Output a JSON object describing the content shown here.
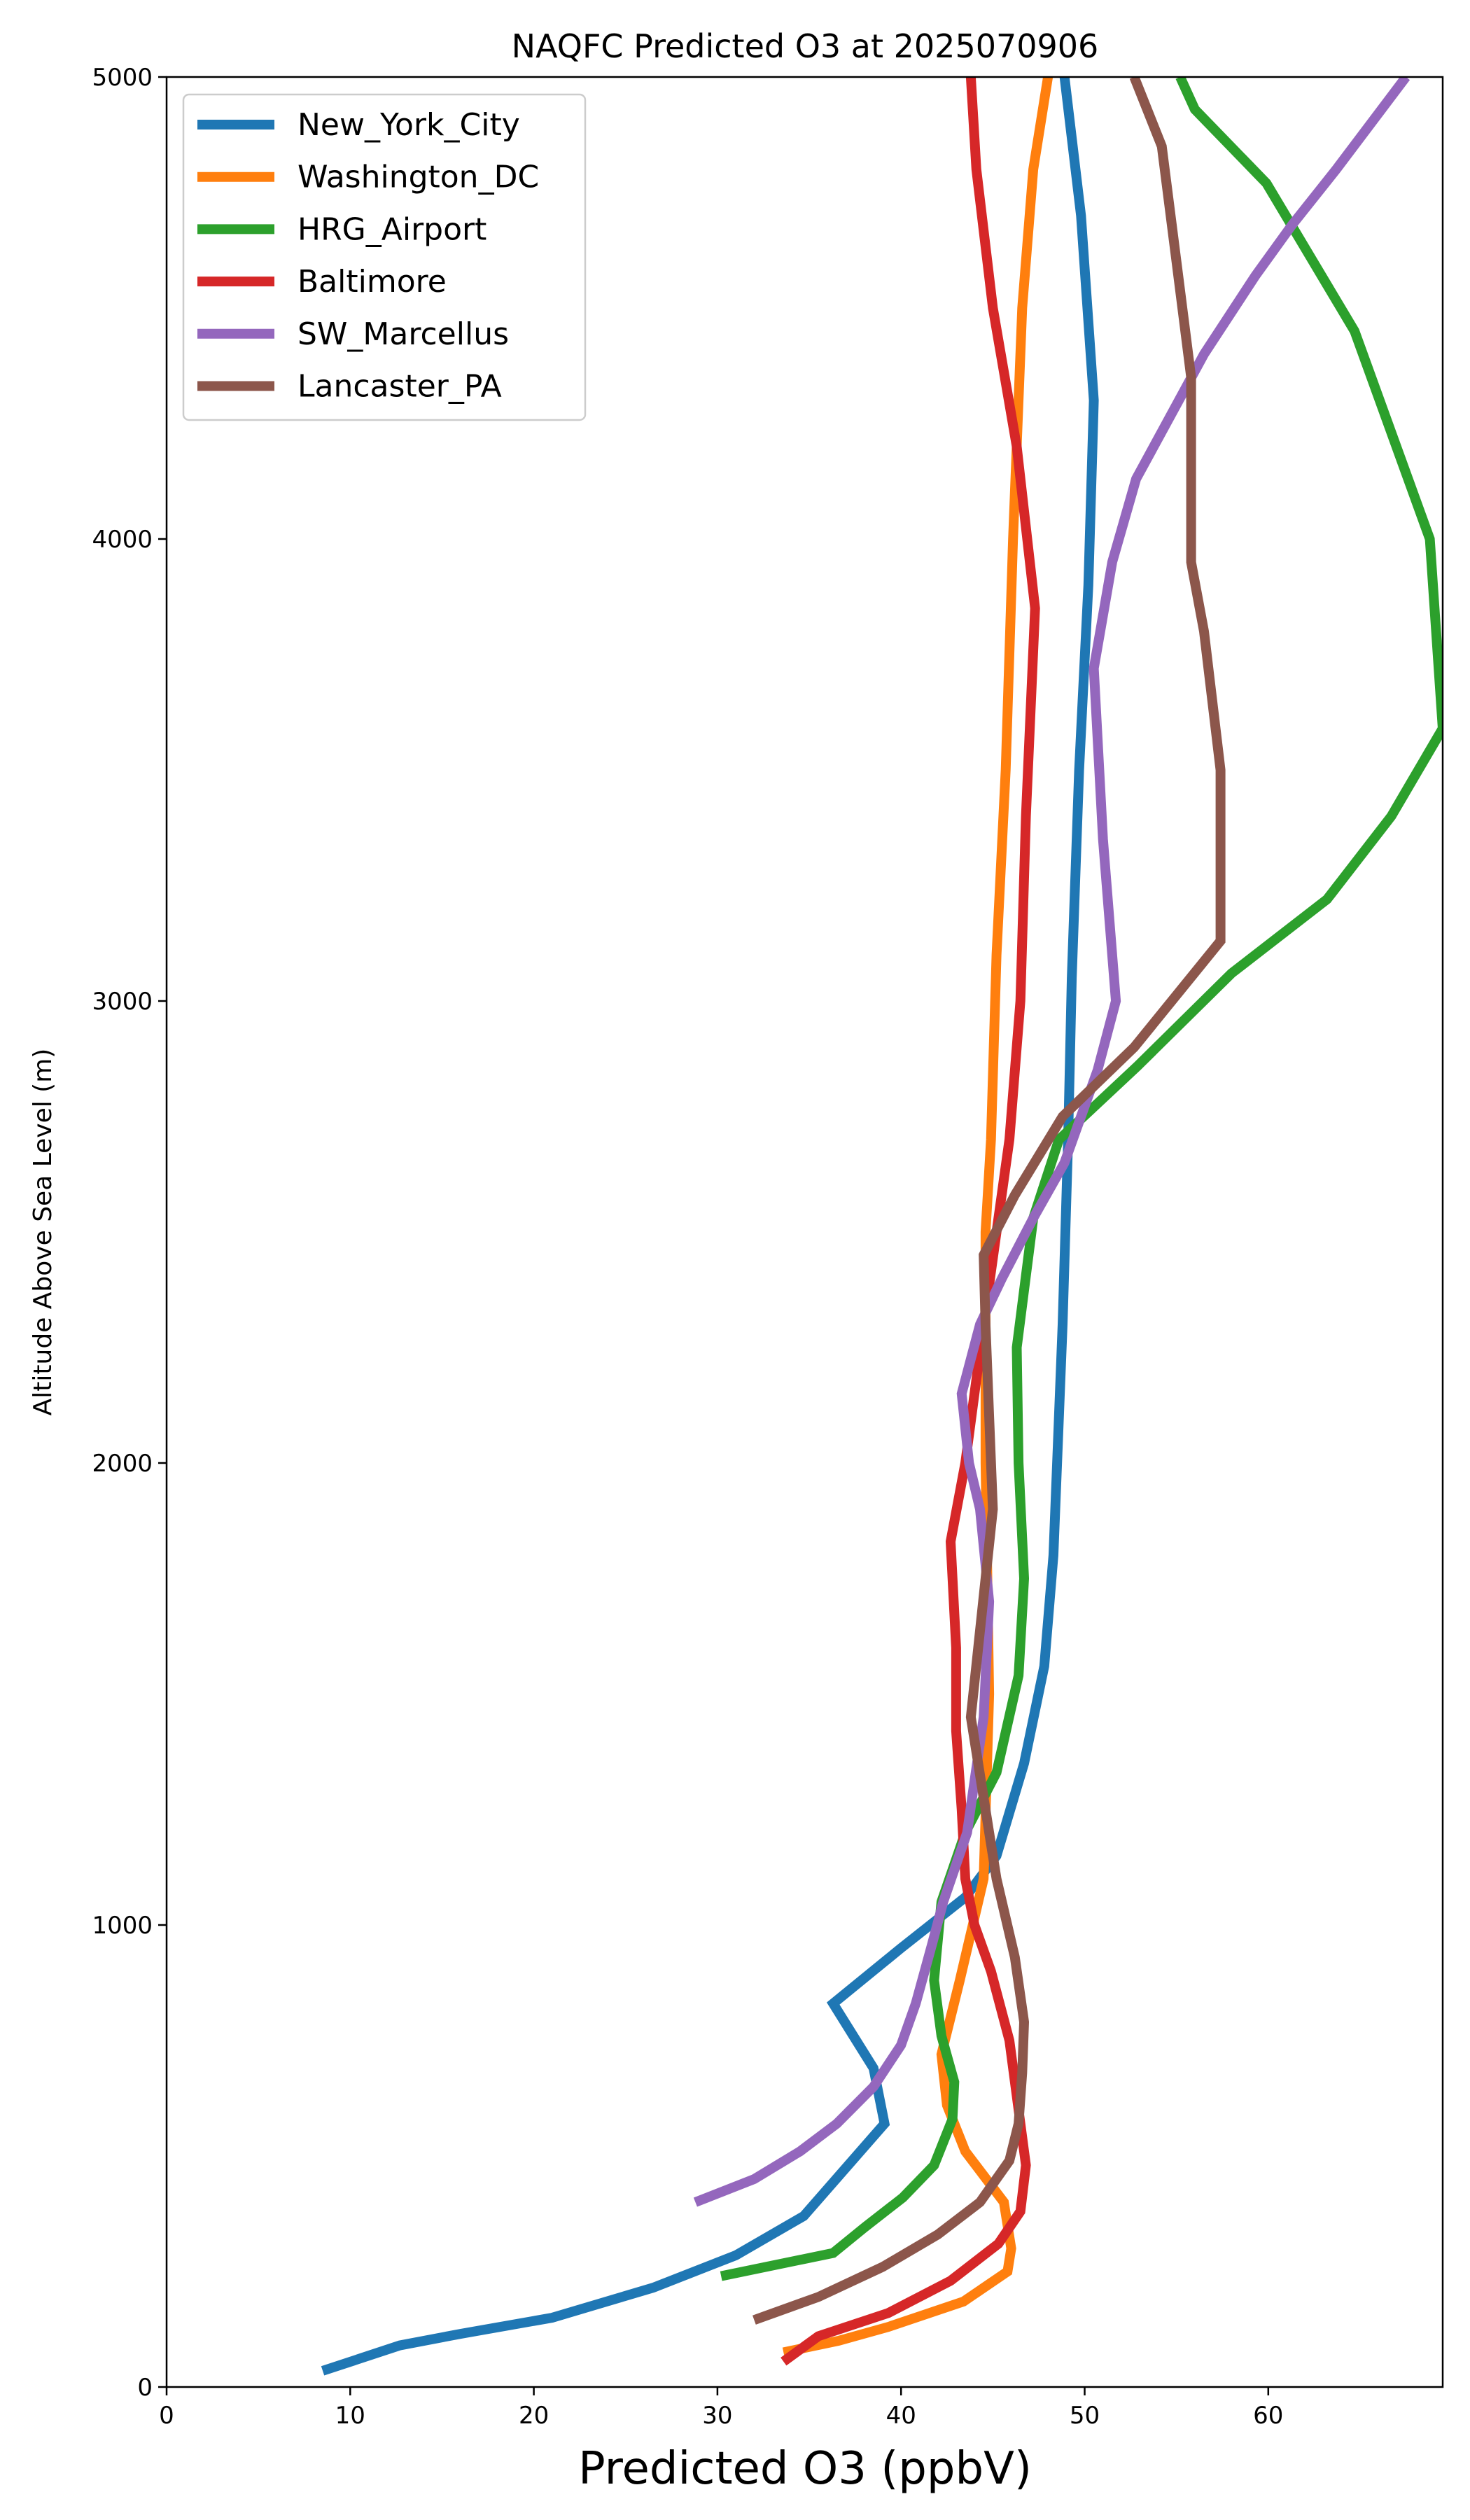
{
  "chart_data": {
    "type": "line",
    "title": "NAQFC Predicted O3 at 2025070906",
    "xlabel": "Predicted O3 (ppbV)",
    "ylabel": "Altitude Above Sea Level (m)",
    "xlim": [
      0,
      69.5
    ],
    "ylim": [
      0,
      5000
    ],
    "xticks": [
      0,
      10,
      20,
      30,
      40,
      50,
      60
    ],
    "yticks": [
      0,
      1000,
      2000,
      3000,
      4000,
      5000
    ],
    "grid": false,
    "legend_position": "upper-left",
    "series": [
      {
        "name": "New_York_City",
        "color": "#1f77b4",
        "points": [
          [
            8.5,
            35
          ],
          [
            12.7,
            90
          ],
          [
            16,
            115
          ],
          [
            21,
            150
          ],
          [
            26.5,
            215
          ],
          [
            31,
            285
          ],
          [
            34.7,
            370
          ],
          [
            39.1,
            570
          ],
          [
            38.5,
            690
          ],
          [
            36.3,
            830
          ],
          [
            40,
            950
          ],
          [
            43.5,
            1060
          ],
          [
            45.2,
            1150
          ],
          [
            46.7,
            1350
          ],
          [
            47.8,
            1560
          ],
          [
            48.3,
            1800
          ],
          [
            48.8,
            2300
          ],
          [
            49.1,
            2700
          ],
          [
            49.3,
            3050
          ],
          [
            49.7,
            3500
          ],
          [
            50.2,
            3900
          ],
          [
            50.5,
            4300
          ],
          [
            49.8,
            4700
          ],
          [
            48.9,
            5000
          ]
        ]
      },
      {
        "name": "Washington_DC",
        "color": "#ff7f0e",
        "points": [
          [
            33.6,
            75
          ],
          [
            36.6,
            100
          ],
          [
            39.3,
            130
          ],
          [
            43.4,
            185
          ],
          [
            45.8,
            250
          ],
          [
            46,
            300
          ],
          [
            45.6,
            400
          ],
          [
            43.5,
            510
          ],
          [
            42.5,
            610
          ],
          [
            42.2,
            720
          ],
          [
            43.2,
            880
          ],
          [
            44.5,
            1100
          ],
          [
            44.8,
            1500
          ],
          [
            44.6,
            2000
          ],
          [
            44.6,
            2500
          ],
          [
            44.9,
            2700
          ],
          [
            45.2,
            3100
          ],
          [
            45.7,
            3500
          ],
          [
            46.1,
            4000
          ],
          [
            46.6,
            4500
          ],
          [
            47.2,
            4800
          ],
          [
            48,
            5000
          ]
        ]
      },
      {
        "name": "HRG_Airport",
        "color": "#2ca02c",
        "points": [
          [
            30.2,
            240
          ],
          [
            36.3,
            290
          ],
          [
            38,
            345
          ],
          [
            40.1,
            410
          ],
          [
            41.8,
            480
          ],
          [
            42.8,
            580
          ],
          [
            42.9,
            660
          ],
          [
            42.2,
            760
          ],
          [
            41.8,
            880
          ],
          [
            42.2,
            1050
          ],
          [
            43.5,
            1200
          ],
          [
            45.2,
            1330
          ],
          [
            46.4,
            1540
          ],
          [
            46.7,
            1750
          ],
          [
            46.4,
            2000
          ],
          [
            46.3,
            2250
          ],
          [
            47.2,
            2530
          ],
          [
            48.6,
            2700
          ],
          [
            52.9,
            2860
          ],
          [
            58,
            3060
          ],
          [
            63.2,
            3220
          ],
          [
            66.7,
            3400
          ],
          [
            69.5,
            3590
          ],
          [
            68.8,
            4000
          ],
          [
            64.7,
            4450
          ],
          [
            59.9,
            4770
          ],
          [
            56,
            4930
          ],
          [
            55.2,
            5000
          ]
        ]
      },
      {
        "name": "Baltimore",
        "color": "#d62728",
        "points": [
          [
            33.6,
            55
          ],
          [
            35.5,
            110
          ],
          [
            39.3,
            160
          ],
          [
            42.7,
            230
          ],
          [
            45.3,
            310
          ],
          [
            46.5,
            380
          ],
          [
            46.8,
            480
          ],
          [
            46.4,
            600
          ],
          [
            45.9,
            750
          ],
          [
            44.9,
            900
          ],
          [
            44,
            1000
          ],
          [
            43.5,
            1100
          ],
          [
            43.3,
            1250
          ],
          [
            43,
            1420
          ],
          [
            43,
            1600
          ],
          [
            42.7,
            1830
          ],
          [
            43.5,
            2000
          ],
          [
            44,
            2150
          ],
          [
            44.5,
            2300
          ],
          [
            45.2,
            2500
          ],
          [
            45.9,
            2700
          ],
          [
            46.5,
            3000
          ],
          [
            46.8,
            3400
          ],
          [
            47.3,
            3850
          ],
          [
            46.3,
            4200
          ],
          [
            45,
            4500
          ],
          [
            44.1,
            4800
          ],
          [
            43.8,
            5000
          ]
        ]
      },
      {
        "name": "SW_Marcellus",
        "color": "#9467bd",
        "points": [
          [
            28.8,
            400
          ],
          [
            32,
            450
          ],
          [
            34.5,
            510
          ],
          [
            36.5,
            570
          ],
          [
            38.5,
            650
          ],
          [
            40,
            740
          ],
          [
            40.8,
            830
          ],
          [
            41.7,
            960
          ],
          [
            42.3,
            1050
          ],
          [
            43.6,
            1200
          ],
          [
            44.5,
            1450
          ],
          [
            44.8,
            1700
          ],
          [
            44.3,
            1900
          ],
          [
            43.7,
            2000
          ],
          [
            43.3,
            2150
          ],
          [
            44.3,
            2300
          ],
          [
            45.5,
            2400
          ],
          [
            47.2,
            2530
          ],
          [
            48.9,
            2650
          ],
          [
            50.7,
            2850
          ],
          [
            51.7,
            3000
          ],
          [
            51,
            3350
          ],
          [
            50.5,
            3720
          ],
          [
            51.5,
            3950
          ],
          [
            52.8,
            4130
          ],
          [
            56.5,
            4400
          ],
          [
            59.3,
            4570
          ],
          [
            61.3,
            4680
          ],
          [
            63.7,
            4800
          ],
          [
            67.5,
            5000
          ]
        ]
      },
      {
        "name": "Lancaster_PA",
        "color": "#8c564b",
        "points": [
          [
            32,
            145
          ],
          [
            35.5,
            195
          ],
          [
            39,
            260
          ],
          [
            42,
            330
          ],
          [
            44.3,
            400
          ],
          [
            45.9,
            490
          ],
          [
            46.4,
            570
          ],
          [
            46.6,
            680
          ],
          [
            46.7,
            790
          ],
          [
            46.2,
            930
          ],
          [
            45.2,
            1100
          ],
          [
            44.4,
            1300
          ],
          [
            43.8,
            1450
          ],
          [
            44.2,
            1600
          ],
          [
            44.6,
            1750
          ],
          [
            45,
            1900
          ],
          [
            44.8,
            2100
          ],
          [
            44.6,
            2300
          ],
          [
            44.5,
            2450
          ],
          [
            46.2,
            2580
          ],
          [
            48.8,
            2750
          ],
          [
            52.7,
            2900
          ],
          [
            57.4,
            3130
          ],
          [
            57.4,
            3500
          ],
          [
            56.5,
            3800
          ],
          [
            55.8,
            3950
          ],
          [
            55.8,
            4350
          ],
          [
            55,
            4600
          ],
          [
            54.2,
            4850
          ],
          [
            52.7,
            5000
          ]
        ]
      }
    ]
  }
}
